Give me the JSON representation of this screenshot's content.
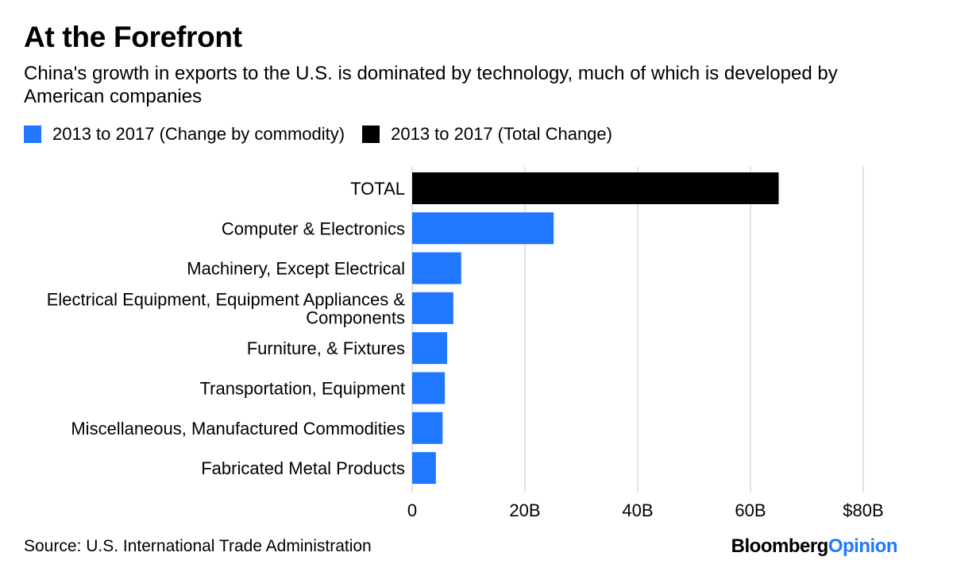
{
  "header": {
    "title": "At the Forefront",
    "subtitle": "China's growth in exports to the U.S. is dominated by technology, much of which is developed by American companies"
  },
  "legend": [
    {
      "label": "2013 to 2017 (Change by commodity)",
      "color": "#1f78ff"
    },
    {
      "label": "2013 to 2017 (Total Change)",
      "color": "#000000"
    }
  ],
  "chart_data": {
    "type": "bar",
    "orientation": "horizontal",
    "categories": [
      "TOTAL",
      "Computer & Electronics",
      "Machinery, Except Electrical",
      "Electrical Equipment, Equipment Appliances & Components",
      "Furniture, & Fixtures",
      "Transportation, Equipment",
      "Miscellaneous, Manufactured Commodities",
      "Fabricated Metal Products"
    ],
    "category_lines": [
      [
        "TOTAL"
      ],
      [
        "Computer & Electronics"
      ],
      [
        "Machinery, Except Electrical"
      ],
      [
        "Electrical Equipment, Equipment Appliances &",
        "Components"
      ],
      [
        "Furniture, & Fixtures"
      ],
      [
        "Transportation, Equipment"
      ],
      [
        "Miscellaneous, Manufactured Commodities"
      ],
      [
        "Fabricated Metal Products"
      ]
    ],
    "values": [
      65,
      25.1,
      8.7,
      7.3,
      6.2,
      5.8,
      5.4,
      4.2
    ],
    "series_of_bar": [
      "total",
      "commodity",
      "commodity",
      "commodity",
      "commodity",
      "commodity",
      "commodity",
      "commodity"
    ],
    "colors": {
      "commodity": "#1f78ff",
      "total": "#000000"
    },
    "xlim": [
      0,
      80
    ],
    "xticks": [
      0,
      20,
      40,
      60,
      80
    ],
    "xtick_labels": [
      "0",
      "20B",
      "40B",
      "60B",
      "$80B"
    ],
    "units": "billions USD",
    "grid": true
  },
  "footer": {
    "source": "Source: U.S. International Trade Administration",
    "brand_main": "Bloomberg",
    "brand_accent": "Opinion"
  }
}
